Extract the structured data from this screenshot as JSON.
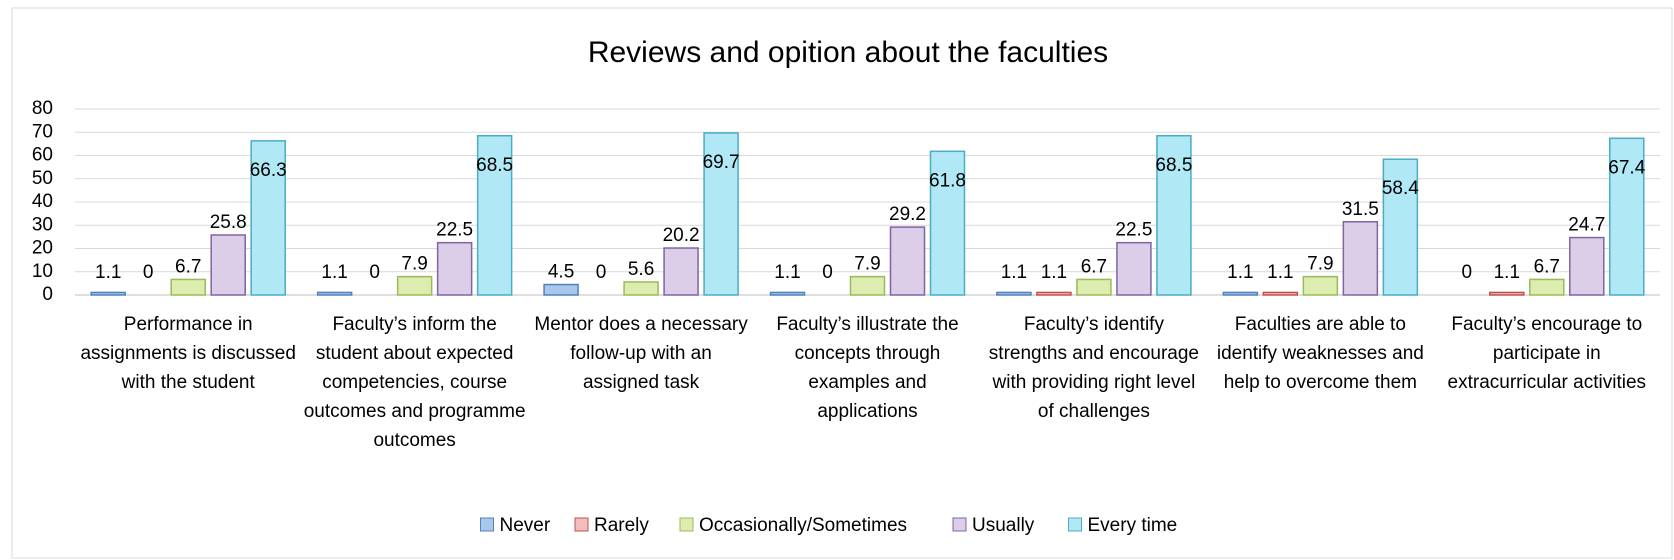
{
  "chart_data": {
    "type": "bar",
    "title": "Reviews and opition about the faculties",
    "categories": [
      "Performance in assignments  is discussed with the student",
      "Faculty’s inform  the student  about expected competencies, course outcomes and programme outcomes",
      "Mentor does a necessary follow-up with an assigned task",
      "Faculty’s illustrate the concepts through examples and applications",
      "Faculty’s identify strengths and encourage  with providing right level of challenges",
      "Faculties are able to identify  weaknesses and help  to overcome them",
      "Faculty’s encourage  to participate in extracurricular activities"
    ],
    "series": [
      {
        "name": "Never",
        "color": "#a9c6ec",
        "border": "#4f81bd",
        "values": [
          1.1,
          1.1,
          4.5,
          1.1,
          1.1,
          1.1,
          0
        ]
      },
      {
        "name": "Rarely",
        "color": "#f4bcba",
        "border": "#c0504d",
        "values": [
          0,
          0,
          0,
          0,
          1.1,
          1.1,
          1.1
        ]
      },
      {
        "name": "Occasionally/Sometimes",
        "color": "#dcedaf",
        "border": "#9bbb59",
        "values": [
          6.7,
          7.9,
          5.6,
          7.9,
          6.7,
          7.9,
          6.7
        ]
      },
      {
        "name": "Usually",
        "color": "#dccde9",
        "border": "#8064a2",
        "values": [
          25.8,
          22.5,
          20.2,
          29.2,
          22.5,
          31.5,
          24.7
        ]
      },
      {
        "name": "Every time",
        "color": "#b0e8f5",
        "border": "#4bacc6",
        "values": [
          66.3,
          68.5,
          69.7,
          61.8,
          68.5,
          58.4,
          67.4
        ]
      }
    ],
    "ylim": [
      0,
      80
    ],
    "yticks": [
      0,
      10,
      20,
      30,
      40,
      50,
      60,
      70,
      80
    ],
    "grid": true,
    "legend": "bottom"
  }
}
